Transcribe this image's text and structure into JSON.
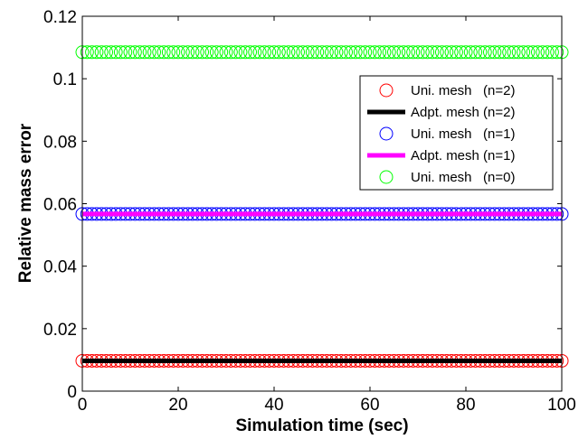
{
  "chart_data": {
    "type": "line",
    "title": "",
    "xlabel": "Simulation time (sec)",
    "ylabel": "Relative mass error",
    "xlim": [
      0,
      100
    ],
    "ylim": [
      0,
      0.12
    ],
    "xticks": [
      0,
      20,
      40,
      60,
      80,
      100
    ],
    "yticks": [
      0,
      0.02,
      0.04,
      0.06,
      0.08,
      0.1,
      0.12
    ],
    "xtick_labels": [
      "0",
      "20",
      "40",
      "60",
      "80",
      "100"
    ],
    "ytick_labels": [
      "0",
      "0.02",
      "0.04",
      "0.06",
      "0.08",
      "0.1",
      "0.12"
    ],
    "grid": false,
    "legend_position": "top-right",
    "series": [
      {
        "name": "Uni. mesh   (n=2)",
        "style": "marker",
        "color": "#ff0000",
        "x_range": [
          0,
          100
        ],
        "n_markers": 101,
        "value": 0.0097
      },
      {
        "name": "Adpt. mesh (n=2)",
        "style": "line",
        "color": "#000000",
        "x_range": [
          0,
          100
        ],
        "value": 0.0097
      },
      {
        "name": "Uni. mesh   (n=1)",
        "style": "marker",
        "color": "#0000ff",
        "x_range": [
          0,
          100
        ],
        "n_markers": 101,
        "value": 0.0567
      },
      {
        "name": "Adpt. mesh (n=1)",
        "style": "line",
        "color": "#ff00ff",
        "x_range": [
          0,
          100
        ],
        "value": 0.0567
      },
      {
        "name": "Uni. mesh   (n=0)",
        "style": "marker",
        "color": "#00ff00",
        "x_range": [
          0,
          100
        ],
        "n_markers": 101,
        "value": 0.1085
      }
    ]
  }
}
